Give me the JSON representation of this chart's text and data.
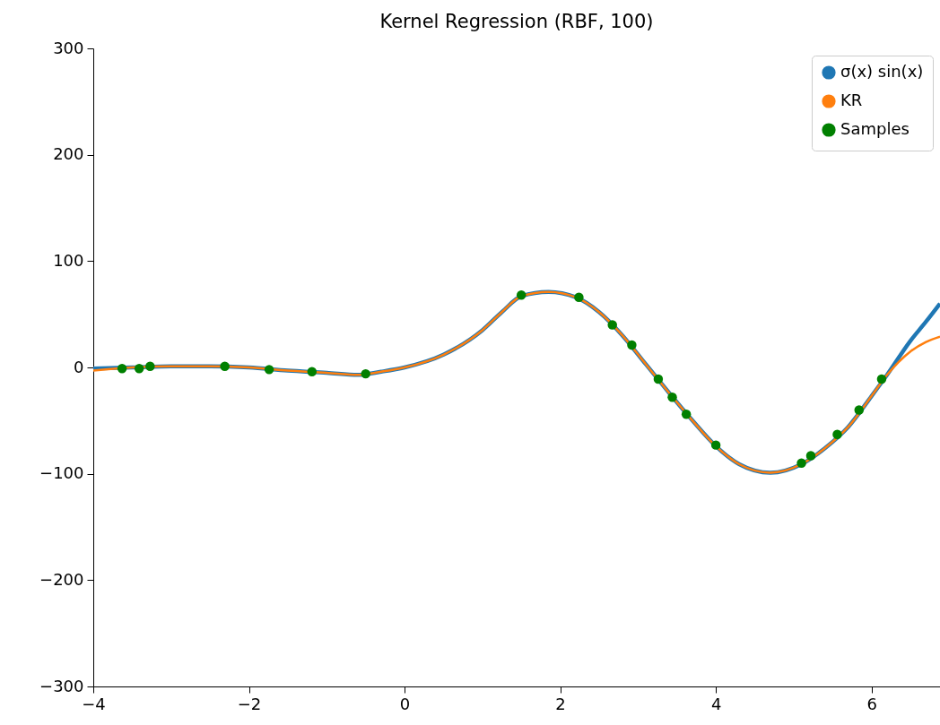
{
  "chart_data": {
    "type": "line",
    "title": "Kernel Regression (RBF, 100)",
    "xlim": [
      -4,
      6.88
    ],
    "ylim": [
      -300,
      300
    ],
    "xticks": [
      {
        "value": -4,
        "label": "−4"
      },
      {
        "value": -2,
        "label": "−2"
      },
      0,
      2,
      4,
      6
    ],
    "yticks": [
      {
        "value": -300,
        "label": "−300"
      },
      {
        "value": -200,
        "label": "−200"
      },
      {
        "value": -100,
        "label": "−100"
      },
      0,
      100,
      200,
      300
    ],
    "grid": false,
    "legend": "top right",
    "series": [
      {
        "name": "σ(x) sin(x)",
        "color": "#1f77b4",
        "x": [
          -4,
          -3.5,
          -3,
          -2.5,
          -2,
          -1.5,
          -1,
          -0.6,
          -0.3,
          0,
          0.5,
          1,
          1.25,
          1.5,
          1.85,
          2.2,
          2.5,
          2.8,
          3.1,
          3.4,
          3.7,
          4,
          4.3,
          4.7,
          5.1,
          5.4,
          5.7,
          6,
          6.2,
          6.5,
          6.7,
          6.88
        ],
        "values": [
          -1,
          0,
          1,
          1,
          0,
          -3,
          -5,
          -7,
          -4,
          0,
          12,
          35,
          52,
          67,
          71,
          66,
          52,
          30,
          3,
          -24,
          -50,
          -74,
          -91,
          -99,
          -91,
          -76,
          -56,
          -27,
          -7,
          25,
          43,
          60
        ]
      },
      {
        "name": "KR",
        "color": "#ff7f0e",
        "x": [
          -4,
          -3.5,
          -3,
          -2.5,
          -2,
          -1.5,
          -1,
          -0.6,
          -0.3,
          0,
          0.5,
          1,
          1.25,
          1.5,
          1.85,
          2.2,
          2.5,
          2.8,
          3.1,
          3.4,
          3.7,
          4,
          4.3,
          4.7,
          5.1,
          5.4,
          5.7,
          6,
          6.2,
          6.5,
          6.7,
          6.88
        ],
        "values": [
          -3,
          0,
          1,
          1,
          0,
          -3,
          -5,
          -7,
          -4,
          0,
          12,
          35,
          52,
          67,
          71,
          66,
          52,
          30,
          3,
          -24,
          -50,
          -74,
          -91,
          -99,
          -91,
          -76,
          -56,
          -27,
          -7,
          15,
          24,
          29
        ]
      },
      {
        "name": "Samples",
        "type": "scatter",
        "color": "#008000",
        "x": [
          -3.63,
          -3.41,
          -3.27,
          -2.31,
          -1.74,
          -1.19,
          -0.5,
          1.5,
          2.24,
          2.67,
          2.92,
          3.26,
          3.44,
          3.62,
          4.0,
          5.1,
          5.22,
          5.56,
          5.84,
          6.13
        ],
        "values": [
          -1,
          -1,
          1,
          1,
          -2,
          -4,
          -6,
          68,
          66,
          40,
          21,
          -11,
          -28,
          -44,
          -73,
          -90,
          -83,
          -63,
          -40,
          -11
        ]
      }
    ]
  }
}
